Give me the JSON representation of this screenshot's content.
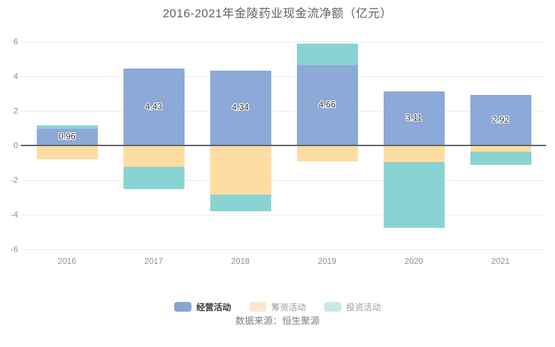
{
  "title": "2016-2021年金陵药业现金流净额（亿元）",
  "source": "数据来源：恒生聚源",
  "chart_data": {
    "type": "bar",
    "stacked": true,
    "categories": [
      "2016",
      "2017",
      "2018",
      "2019",
      "2020",
      "2021"
    ],
    "series": [
      {
        "key": "operating",
        "name": "经营活动",
        "color": "#8CA9D8",
        "values": [
          0.96,
          4.43,
          4.34,
          4.66,
          3.11,
          2.92
        ],
        "labeled": true
      },
      {
        "key": "financing",
        "name": "筹资活动",
        "color": "#FDDDA1",
        "values": [
          -0.8,
          -1.25,
          -2.85,
          -0.9,
          -0.95,
          -0.35
        ],
        "labeled": false
      },
      {
        "key": "investing",
        "name": "投资活动",
        "color": "#89D4D2",
        "values": [
          0.19,
          -1.25,
          -0.95,
          1.24,
          -3.8,
          -0.75
        ],
        "labeled": false
      }
    ],
    "ylim": [
      -6,
      6
    ],
    "yticks": [
      6,
      4,
      2,
      0,
      -2,
      -4,
      -6
    ],
    "grid": true,
    "legend_position": "bottom",
    "colors": {
      "grid_line": "#e4ebf6",
      "zero_line": "#5c6068",
      "tick_label": "#8f8f8f",
      "bar_value_label": "#333333"
    }
  },
  "legend": {
    "items": [
      {
        "label": "经营活动",
        "swatch": "#87A4D2",
        "active": true
      },
      {
        "label": "筹资活动",
        "swatch": "#FBE8CB",
        "active": false
      },
      {
        "label": "投资活动",
        "swatch": "#C9E9E6",
        "active": false
      }
    ]
  }
}
